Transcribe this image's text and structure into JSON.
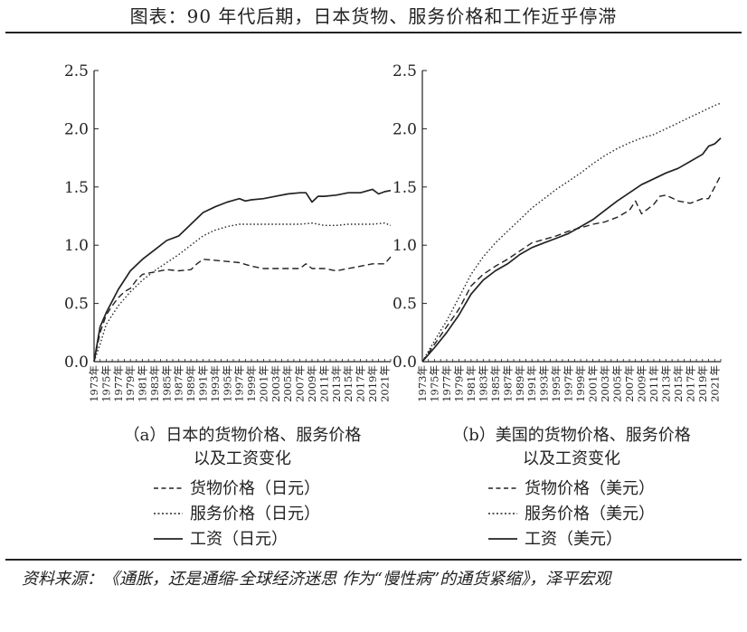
{
  "page": {
    "title": "图表：90 年代后期，日本货物、服务价格和工作近乎停滞",
    "source": "资料来源：《通胀，还是通缩-全球经济迷思 作为“慢性病”的通货紧缩》，泽平宏观"
  },
  "chart_data": [
    {
      "type": "line",
      "caption_lines": [
        "（a）日本的货物价格、服务价格",
        "以及工资变化"
      ],
      "ylim": [
        0,
        2.5
      ],
      "yticks": [
        "0.0",
        "0.5",
        "1.0",
        "1.5",
        "2.0",
        "2.5"
      ],
      "xlim": [
        1973,
        2022
      ],
      "xticks": [
        "1973年",
        "1975年",
        "1977年",
        "1979年",
        "1981年",
        "1983年",
        "1985年",
        "1987年",
        "1989年",
        "1991年",
        "1993年",
        "1995年",
        "1997年",
        "1999年",
        "2001年",
        "2003年",
        "2005年",
        "2007年",
        "2009年",
        "2011年",
        "2013年",
        "2015年",
        "2017年",
        "2019年",
        "2021年"
      ],
      "legend": [
        {
          "name": "货物价格（日元）",
          "style": "dashed"
        },
        {
          "name": "服务价格（日元）",
          "style": "dotted"
        },
        {
          "name": "工资（日元）",
          "style": "solid"
        }
      ],
      "series": [
        {
          "key": "goods",
          "style": "dashed",
          "x": [
            1973,
            1974,
            1975,
            1976,
            1977,
            1978,
            1979,
            1980,
            1981,
            1982,
            1983,
            1985,
            1987,
            1989,
            1990,
            1991,
            1993,
            1995,
            1997,
            1999,
            2001,
            2003,
            2005,
            2007,
            2008,
            2009,
            2011,
            2013,
            2015,
            2017,
            2019,
            2021,
            2022
          ],
          "y": [
            0.0,
            0.25,
            0.4,
            0.48,
            0.55,
            0.6,
            0.63,
            0.7,
            0.75,
            0.76,
            0.77,
            0.79,
            0.78,
            0.79,
            0.84,
            0.88,
            0.87,
            0.86,
            0.85,
            0.82,
            0.8,
            0.8,
            0.8,
            0.8,
            0.84,
            0.8,
            0.8,
            0.78,
            0.8,
            0.82,
            0.84,
            0.84,
            0.9
          ]
        },
        {
          "key": "services",
          "style": "dotted",
          "x": [
            1973,
            1974,
            1975,
            1977,
            1979,
            1981,
            1983,
            1985,
            1987,
            1989,
            1991,
            1993,
            1995,
            1997,
            1999,
            2001,
            2003,
            2005,
            2007,
            2009,
            2011,
            2013,
            2015,
            2017,
            2019,
            2021,
            2022
          ],
          "y": [
            0.0,
            0.15,
            0.32,
            0.48,
            0.6,
            0.7,
            0.78,
            0.85,
            0.92,
            1.0,
            1.08,
            1.13,
            1.16,
            1.18,
            1.18,
            1.18,
            1.18,
            1.18,
            1.18,
            1.19,
            1.17,
            1.17,
            1.18,
            1.18,
            1.18,
            1.19,
            1.17
          ]
        },
        {
          "key": "wages",
          "style": "solid",
          "x": [
            1973,
            1974,
            1975,
            1977,
            1979,
            1981,
            1983,
            1985,
            1987,
            1989,
            1991,
            1993,
            1995,
            1997,
            1998,
            1999,
            2001,
            2003,
            2005,
            2007,
            2008,
            2009,
            2010,
            2011,
            2013,
            2015,
            2017,
            2019,
            2020,
            2021,
            2022
          ],
          "y": [
            0.0,
            0.3,
            0.42,
            0.62,
            0.78,
            0.88,
            0.96,
            1.04,
            1.08,
            1.18,
            1.28,
            1.33,
            1.37,
            1.4,
            1.38,
            1.39,
            1.4,
            1.42,
            1.44,
            1.45,
            1.45,
            1.37,
            1.42,
            1.42,
            1.43,
            1.45,
            1.45,
            1.48,
            1.44,
            1.46,
            1.47
          ]
        }
      ]
    },
    {
      "type": "line",
      "caption_lines": [
        "（b）美国的货物价格、服务价格",
        "以及工资变化"
      ],
      "ylim": [
        0,
        2.5
      ],
      "yticks": [
        "0.0",
        "0.5",
        "1.0",
        "1.5",
        "2.0",
        "2.5"
      ],
      "xlim": [
        1973,
        2022
      ],
      "xticks": [
        "1973年",
        "1975年",
        "1977年",
        "1979年",
        "1981年",
        "1983年",
        "1985年",
        "1987年",
        "1989年",
        "1991年",
        "1993年",
        "1995年",
        "1997年",
        "1999年",
        "2001年",
        "2003年",
        "2005年",
        "2007年",
        "2009年",
        "2011年",
        "2013年",
        "2015年",
        "2017年",
        "2019年",
        "2021年"
      ],
      "legend": [
        {
          "name": "货物价格（美元）",
          "style": "dashed"
        },
        {
          "name": "服务价格（美元）",
          "style": "dotted"
        },
        {
          "name": "工资（美元）",
          "style": "solid"
        }
      ],
      "series": [
        {
          "key": "goods",
          "style": "dashed",
          "x": [
            1973,
            1975,
            1977,
            1979,
            1981,
            1983,
            1985,
            1987,
            1989,
            1991,
            1993,
            1995,
            1997,
            1999,
            2001,
            2003,
            2005,
            2007,
            2008,
            2009,
            2011,
            2012,
            2013,
            2015,
            2017,
            2019,
            2020,
            2021,
            2022
          ],
          "y": [
            0.0,
            0.15,
            0.3,
            0.45,
            0.65,
            0.75,
            0.82,
            0.88,
            0.95,
            1.02,
            1.05,
            1.08,
            1.12,
            1.15,
            1.18,
            1.2,
            1.24,
            1.3,
            1.38,
            1.27,
            1.35,
            1.42,
            1.43,
            1.38,
            1.36,
            1.4,
            1.4,
            1.5,
            1.6
          ]
        },
        {
          "key": "services",
          "style": "dotted",
          "x": [
            1973,
            1975,
            1977,
            1979,
            1981,
            1983,
            1985,
            1987,
            1989,
            1991,
            1993,
            1995,
            1997,
            1999,
            2001,
            2003,
            2005,
            2007,
            2009,
            2011,
            2013,
            2015,
            2017,
            2019,
            2021,
            2022
          ],
          "y": [
            0.0,
            0.18,
            0.35,
            0.55,
            0.75,
            0.9,
            1.02,
            1.12,
            1.22,
            1.32,
            1.4,
            1.48,
            1.55,
            1.62,
            1.7,
            1.77,
            1.83,
            1.88,
            1.92,
            1.95,
            2.0,
            2.05,
            2.1,
            2.15,
            2.2,
            2.22
          ]
        },
        {
          "key": "wages",
          "style": "solid",
          "x": [
            1973,
            1975,
            1977,
            1979,
            1981,
            1983,
            1985,
            1987,
            1989,
            1991,
            1993,
            1995,
            1997,
            1999,
            2001,
            2003,
            2005,
            2007,
            2009,
            2011,
            2013,
            2015,
            2017,
            2019,
            2020,
            2021,
            2022
          ],
          "y": [
            0.0,
            0.12,
            0.25,
            0.4,
            0.58,
            0.7,
            0.78,
            0.84,
            0.92,
            0.98,
            1.02,
            1.06,
            1.1,
            1.16,
            1.22,
            1.3,
            1.38,
            1.45,
            1.52,
            1.57,
            1.62,
            1.66,
            1.72,
            1.78,
            1.85,
            1.87,
            1.92
          ]
        }
      ]
    }
  ]
}
